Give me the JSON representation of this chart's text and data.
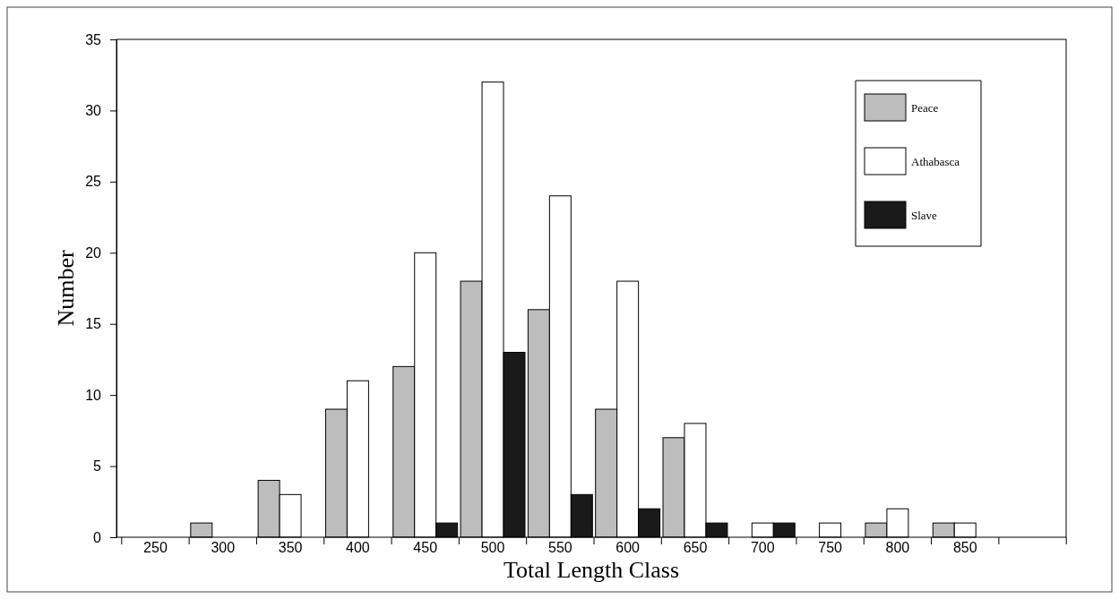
{
  "chart_data": {
    "type": "bar",
    "xlabel": "Total Length Class",
    "ylabel": "Number",
    "categories": [
      "250",
      "300",
      "350",
      "400",
      "450",
      "500",
      "550",
      "600",
      "650",
      "700",
      "750",
      "800",
      "850",
      null
    ],
    "series": [
      {
        "name": "Peace",
        "color": "#bdbdbd",
        "values": [
          0,
          1,
          4,
          9,
          12,
          18,
          16,
          9,
          7,
          0,
          0,
          1,
          1,
          0
        ]
      },
      {
        "name": "Athabasca",
        "color": "#ffffff",
        "values": [
          0,
          0,
          3,
          11,
          20,
          32,
          24,
          18,
          8,
          1,
          1,
          2,
          1,
          0
        ]
      },
      {
        "name": "Slave",
        "color": "#1a1a1a",
        "values": [
          0,
          0,
          0,
          0,
          1,
          13,
          3,
          2,
          1,
          1,
          0,
          0,
          0,
          0
        ]
      }
    ],
    "ylim": [
      0,
      35
    ],
    "yticks": [
      0,
      5,
      10,
      15,
      20,
      25,
      30,
      35
    ],
    "grid": false,
    "legend": "top right"
  }
}
